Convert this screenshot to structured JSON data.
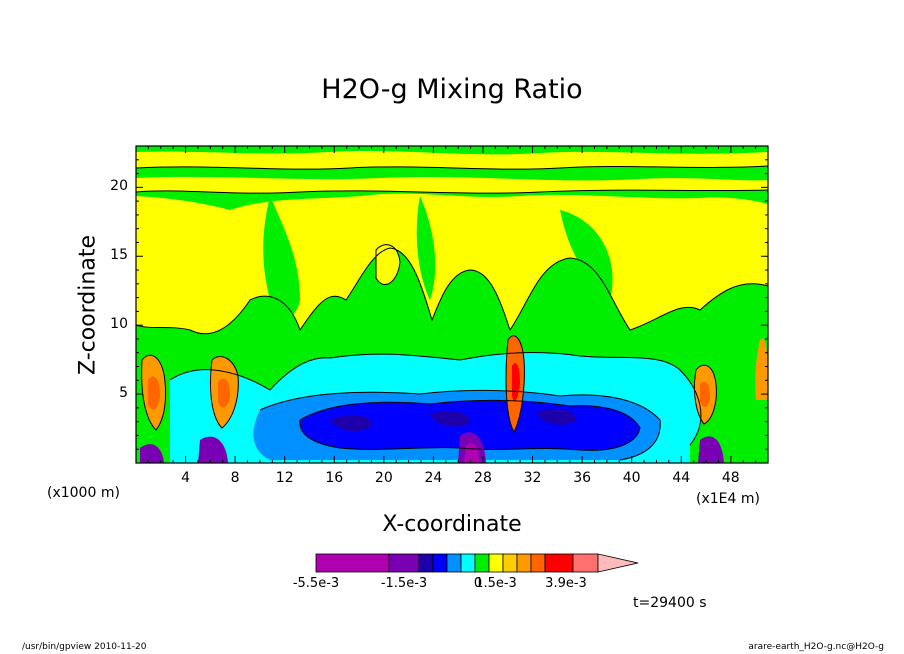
{
  "chart_data": {
    "type": "heatmap",
    "title": "H2O-g Mixing Ratio",
    "xlabel": "X-coordinate",
    "ylabel": "Z-coordinate",
    "x_unit_label": "(x1000 m)",
    "x_multiplier_label": "(x1E4 m)",
    "xlim": [
      0,
      51
    ],
    "ylim": [
      0,
      23
    ],
    "x_ticks": [
      "4",
      "8",
      "12",
      "16",
      "20",
      "24",
      "28",
      "32",
      "36",
      "40",
      "44",
      "48"
    ],
    "y_ticks": [
      "5",
      "10",
      "15",
      "20"
    ],
    "colorbar": {
      "levels": [
        -0.0055,
        -0.0025,
        -0.002,
        -0.0015,
        -0.001,
        -0.0005,
        0,
        0.0005,
        0.001,
        0.0015,
        0.002,
        0.0025,
        0.003,
        0.0039,
        0.005
      ],
      "labels": [
        "-5.5e-3",
        "-1.5e-3",
        "0",
        "1.5e-3",
        "3.9e-3"
      ],
      "colors": [
        "#b000b0",
        "#7a00b4",
        "#1e00aa",
        "#0000ff",
        "#0090ff",
        "#00ffff",
        "#00ee00",
        "#ffff00",
        "#ffcc00",
        "#ff9900",
        "#ff6600",
        "#ff0000",
        "#ff7070",
        "#ffbbbb"
      ]
    },
    "regions": [
      {
        "level": "yellow",
        "x": [
          1,
          51
        ],
        "z": [
          8,
          22
        ],
        "note": "upper layer, mostly yellow with green tongues"
      },
      {
        "level": "cyan",
        "x": [
          11,
          44
        ],
        "z": [
          0,
          8
        ]
      },
      {
        "level": "blue",
        "x": [
          14,
          41
        ],
        "z": [
          1,
          6
        ]
      },
      {
        "level": "orange-red plumes",
        "x": [
          1,
          9
        ],
        "z": [
          1,
          9
        ]
      },
      {
        "level": "red plume",
        "x": [
          30,
          31.5
        ],
        "z": [
          1,
          10
        ]
      },
      {
        "level": "orange plume",
        "x": [
          45,
          48
        ],
        "z": [
          2,
          8
        ]
      }
    ]
  },
  "annotations": {
    "time": "t=29400 s",
    "footer_left": "/usr/bin/gpview  2010-11-20",
    "footer_right": "arare-earth_H2O-g.nc@H2O-g"
  }
}
